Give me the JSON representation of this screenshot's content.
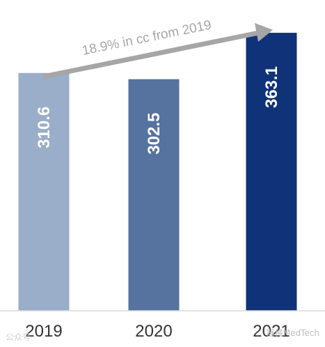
{
  "chart_data": {
    "type": "bar",
    "categories": [
      "2019",
      "2020",
      "2021"
    ],
    "values": [
      310.6,
      302.5,
      363.1
    ],
    "value_labels": [
      "310.6",
      "302.5",
      "363.1"
    ],
    "bar_colors": [
      "#9aadc9",
      "#56729f",
      "#103278"
    ],
    "title": "",
    "xlabel": "",
    "ylabel": "",
    "ylim": [
      0,
      375
    ],
    "grid": false,
    "annotation": {
      "text": "18.9% in cc from 2019",
      "from_category": "2019",
      "to_category": "2021",
      "color": "#a6a6a6"
    }
  },
  "watermarks": {
    "left": "公众号",
    "right": "器械MedTech"
  }
}
